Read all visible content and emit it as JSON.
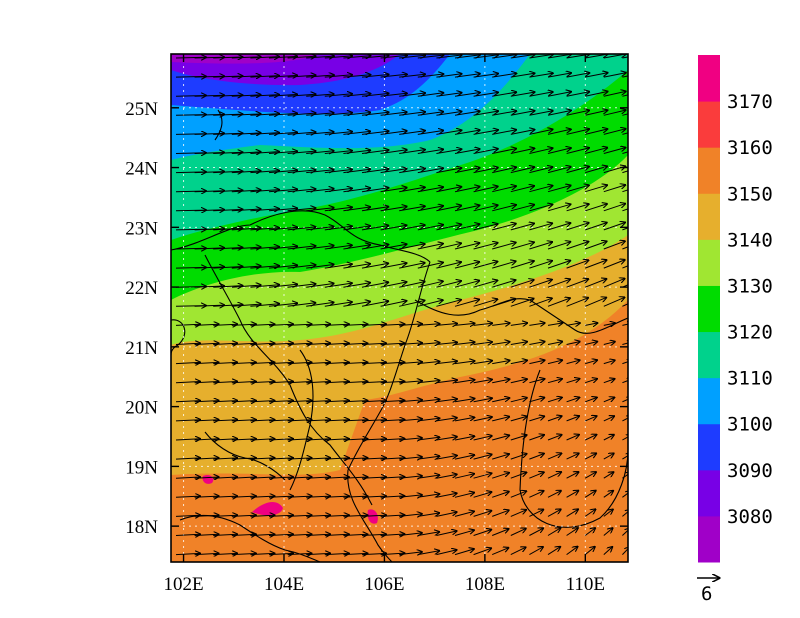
{
  "map": {
    "lon_range": [
      101.75,
      110.85
    ],
    "lat_range": [
      17.4,
      25.9
    ],
    "x_ticks": [
      {
        "value": 102,
        "label": "102E"
      },
      {
        "value": 104,
        "label": "104E"
      },
      {
        "value": 106,
        "label": "106E"
      },
      {
        "value": 108,
        "label": "108E"
      },
      {
        "value": 110,
        "label": "110E"
      }
    ],
    "y_ticks": [
      {
        "value": 18,
        "label": "18N"
      },
      {
        "value": 19,
        "label": "19N"
      },
      {
        "value": 20,
        "label": "20N"
      },
      {
        "value": 21,
        "label": "21N"
      },
      {
        "value": 22,
        "label": "22N"
      },
      {
        "value": 23,
        "label": "23N"
      },
      {
        "value": 24,
        "label": "24N"
      },
      {
        "value": 25,
        "label": "25N"
      }
    ],
    "colorbar": {
      "colors": [
        "#a000c8",
        "#7800e6",
        "#1e3cff",
        "#00a0ff",
        "#00d28c",
        "#00dc00",
        "#a0e632",
        "#e6af2d",
        "#f08228",
        "#fa3c3c",
        "#f00082"
      ],
      "labels": [
        "3080",
        "3090",
        "3100",
        "3110",
        "3120",
        "3130",
        "3140",
        "3150",
        "3160",
        "3170"
      ]
    },
    "reference_vector": {
      "label": "6"
    },
    "grid": true
  }
}
